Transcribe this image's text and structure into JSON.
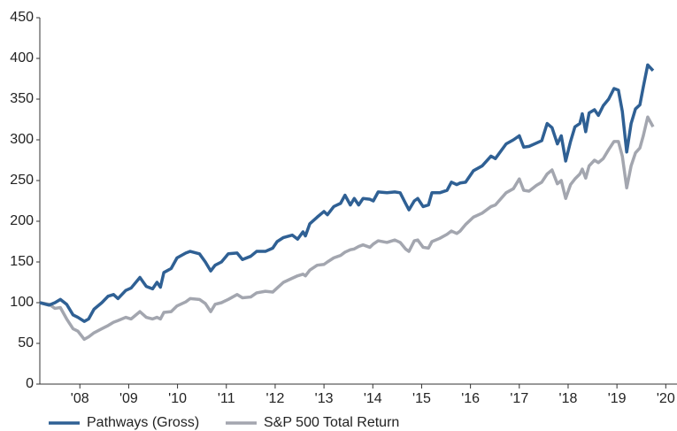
{
  "chart_data": {
    "type": "line",
    "x": [
      2007.18,
      2007.37,
      2007.49,
      2007.6,
      2007.73,
      2007.86,
      2007.96,
      2008.09,
      2008.18,
      2008.29,
      2008.45,
      2008.58,
      2008.69,
      2008.78,
      2008.94,
      2009.05,
      2009.23,
      2009.36,
      2009.49,
      2009.58,
      2009.65,
      2009.72,
      2009.87,
      2009.99,
      2010.17,
      2010.26,
      2010.45,
      2010.57,
      2010.68,
      2010.77,
      2010.9,
      2011.04,
      2011.22,
      2011.33,
      2011.5,
      2011.62,
      2011.8,
      2011.95,
      2012.04,
      2012.17,
      2012.35,
      2012.46,
      2012.57,
      2012.62,
      2012.71,
      2012.86,
      2013.0,
      2013.07,
      2013.2,
      2013.34,
      2013.43,
      2013.54,
      2013.62,
      2013.71,
      2013.8,
      2013.94,
      2014.01,
      2014.11,
      2014.29,
      2014.45,
      2014.56,
      2014.67,
      2014.74,
      2014.85,
      2014.92,
      2015.03,
      2015.14,
      2015.21,
      2015.37,
      2015.52,
      2015.61,
      2015.72,
      2015.79,
      2015.9,
      2016.06,
      2016.24,
      2016.42,
      2016.51,
      2016.73,
      2016.88,
      2017.0,
      2017.09,
      2017.2,
      2017.35,
      2017.46,
      2017.57,
      2017.67,
      2017.78,
      2017.86,
      2017.95,
      2018.05,
      2018.14,
      2018.24,
      2018.29,
      2018.36,
      2018.43,
      2018.54,
      2018.62,
      2018.72,
      2018.83,
      2018.94,
      2019.03,
      2019.11,
      2019.2,
      2019.29,
      2019.38,
      2019.47,
      2019.54,
      2019.63,
      2019.74
    ],
    "series": [
      {
        "name": "Pathways (Gross)",
        "color": "#2f6094",
        "values": [
          100,
          97,
          100,
          104,
          98,
          85,
          82,
          77,
          80,
          92,
          100,
          108,
          110,
          105,
          115,
          118,
          131,
          120,
          117,
          125,
          119,
          137,
          142,
          155,
          161,
          163,
          160,
          150,
          139,
          146,
          150,
          160,
          161,
          153,
          157,
          163,
          163,
          167,
          175,
          180,
          183,
          178,
          187,
          182,
          197,
          205,
          212,
          208,
          218,
          222,
          232,
          220,
          228,
          220,
          228,
          227,
          225,
          236,
          235,
          236,
          235,
          222,
          214,
          225,
          228,
          218,
          220,
          235,
          235,
          238,
          248,
          245,
          247,
          248,
          262,
          268,
          280,
          277,
          295,
          300,
          305,
          291,
          292,
          296,
          299,
          320,
          315,
          295,
          305,
          274,
          298,
          316,
          320,
          332,
          310,
          333,
          337,
          330,
          342,
          350,
          363,
          361,
          335,
          285,
          320,
          338,
          343,
          365,
          392,
          385
        ]
      },
      {
        "name": "S&P 500 Total Return",
        "color": "#a3a6af",
        "values": [
          100,
          98,
          93,
          94,
          80,
          68,
          65,
          55,
          58,
          63,
          68,
          72,
          76,
          78,
          82,
          80,
          89,
          82,
          80,
          82,
          80,
          88,
          89,
          96,
          101,
          105,
          104,
          99,
          89,
          98,
          100,
          104,
          110,
          106,
          107,
          112,
          114,
          113,
          118,
          125,
          130,
          133,
          135,
          133,
          140,
          146,
          147,
          150,
          155,
          158,
          162,
          165,
          166,
          169,
          171,
          168,
          172,
          176,
          174,
          177,
          174,
          166,
          163,
          176,
          177,
          168,
          167,
          175,
          179,
          184,
          188,
          185,
          188,
          196,
          205,
          210,
          218,
          220,
          235,
          240,
          252,
          238,
          237,
          244,
          248,
          258,
          263,
          246,
          250,
          228,
          245,
          252,
          258,
          264,
          253,
          268,
          275,
          272,
          277,
          288,
          298,
          298,
          280,
          241,
          268,
          284,
          290,
          305,
          328,
          316
        ]
      }
    ],
    "xlim": [
      2007.18,
      2020.23
    ],
    "xticks": [
      {
        "value": 2008,
        "label": "'08"
      },
      {
        "value": 2009,
        "label": "'09"
      },
      {
        "value": 2010,
        "label": "'10"
      },
      {
        "value": 2011,
        "label": "'11"
      },
      {
        "value": 2012,
        "label": "'12"
      },
      {
        "value": 2013,
        "label": "'13"
      },
      {
        "value": 2014,
        "label": "'14"
      },
      {
        "value": 2015,
        "label": "'15"
      },
      {
        "value": 2016,
        "label": "'16"
      },
      {
        "value": 2017,
        "label": "'17"
      },
      {
        "value": 2018,
        "label": "'18"
      },
      {
        "value": 2019,
        "label": "'19"
      },
      {
        "value": 2020,
        "label": "'20"
      }
    ],
    "ylim": [
      0,
      450
    ],
    "yticks": [
      0,
      50,
      100,
      150,
      200,
      250,
      300,
      350,
      400,
      450
    ],
    "grid": false
  }
}
